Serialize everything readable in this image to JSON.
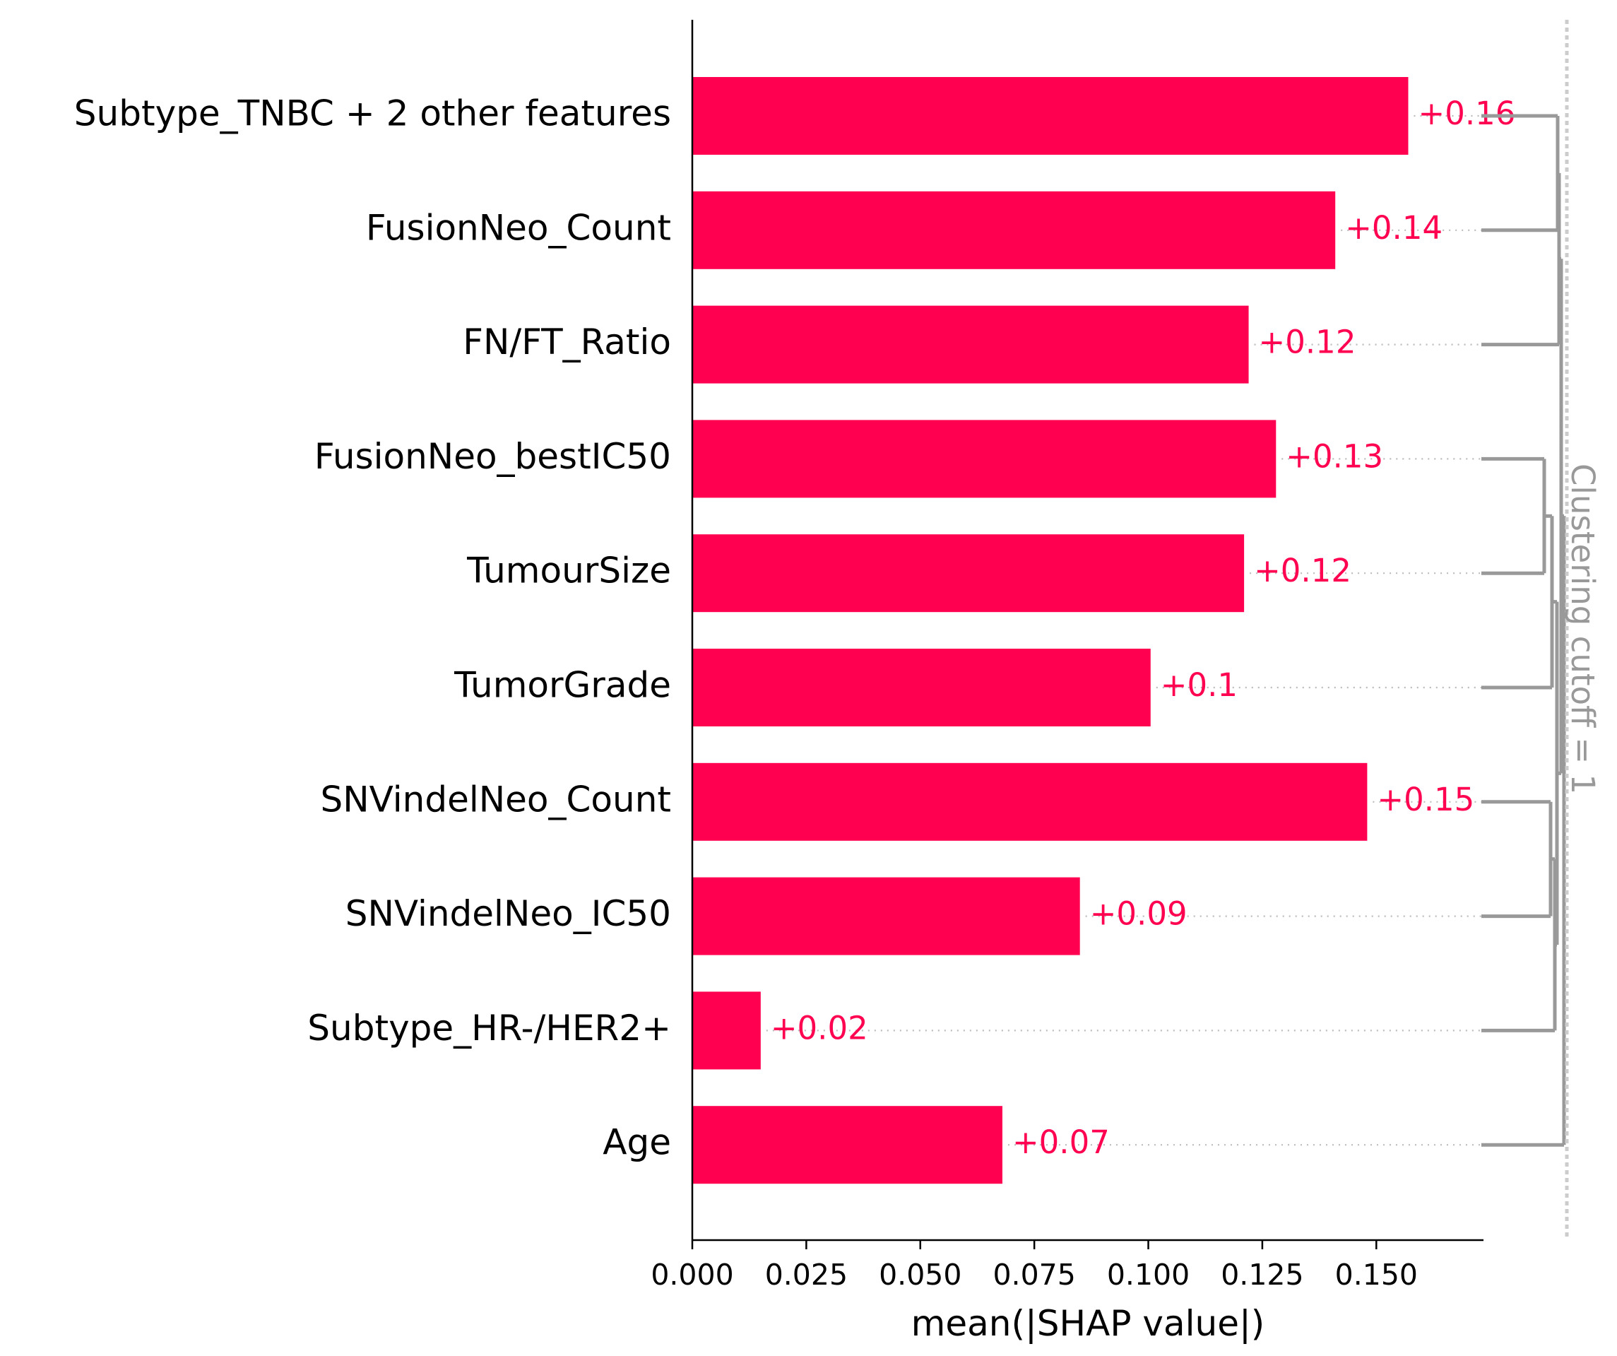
{
  "chart_data": {
    "type": "bar",
    "orientation": "horizontal",
    "categories": [
      "Subtype_TNBC + 2 other features",
      "FusionNeo_Count",
      "FN/FT_Ratio",
      "FusionNeo_bestIC50",
      "TumourSize",
      "TumorGrade",
      "SNVindelNeo_Count",
      "SNVindelNeo_IC50",
      "Subtype_HR-/HER2+",
      "Age"
    ],
    "values": [
      0.157,
      0.141,
      0.122,
      0.128,
      0.121,
      0.1005,
      0.148,
      0.085,
      0.015,
      0.068
    ],
    "value_labels": [
      "+0.16",
      "+0.14",
      "+0.12",
      "+0.13",
      "+0.12",
      "+0.1",
      "+0.15",
      "+0.09",
      "+0.02",
      "+0.07"
    ],
    "xlabel": "mean(|SHAP value|)",
    "ylabel": "",
    "xlim": [
      0,
      0.1735
    ],
    "xticks": [
      "0.000",
      "0.025",
      "0.050",
      "0.075",
      "0.100",
      "0.125",
      "0.150"
    ],
    "bar_color": "#ff0051",
    "clustering_label": "Clustering cutoff = 1",
    "dendrogram_color": "#999999",
    "grid": false
  }
}
